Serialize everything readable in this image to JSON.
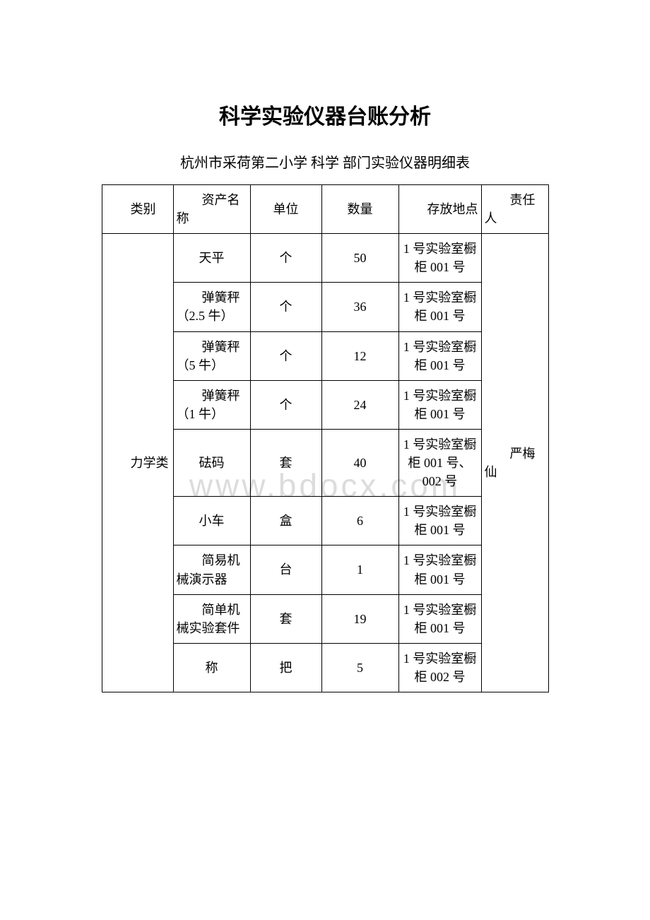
{
  "title": "科学实验仪器台账分析",
  "subtitle": "杭州市采荷第二小学 科学 部门实验仪器明细表",
  "watermark": "www.bdocx.com",
  "columns": {
    "category": "类别",
    "name": "资产名称",
    "unit": "单位",
    "qty": "数量",
    "location": "存放地点",
    "responsible": "责任人"
  },
  "category_label": "力学类",
  "responsible_label": "严梅仙",
  "rows": [
    {
      "name": "天平",
      "unit": "个",
      "qty": "50",
      "location": "1 号实验室橱柜 001 号"
    },
    {
      "name": "弹簧秤（2.5 牛）",
      "unit": "个",
      "qty": "36",
      "location": "1 号实验室橱柜 001 号"
    },
    {
      "name": "弹簧秤（5 牛）",
      "unit": "个",
      "qty": "12",
      "location": "1 号实验室橱柜 001 号"
    },
    {
      "name": "弹簧秤（1 牛）",
      "unit": "个",
      "qty": "24",
      "location": "1 号实验室橱柜 001 号"
    },
    {
      "name": "砝码",
      "unit": "套",
      "qty": "40",
      "location": "1 号实验室橱柜 001 号、002 号"
    },
    {
      "name": "小车",
      "unit": "盒",
      "qty": "6",
      "location": "1 号实验室橱柜 001 号"
    },
    {
      "name": "简易机械演示器",
      "unit": "台",
      "qty": "1",
      "location": "1 号实验室橱柜 001 号"
    },
    {
      "name": "简单机械实验套件",
      "unit": "套",
      "qty": "19",
      "location": "1 号实验室橱柜 001 号"
    },
    {
      "name": "称",
      "unit": "把",
      "qty": "5",
      "location": "1 号实验室橱柜 002 号"
    }
  ]
}
